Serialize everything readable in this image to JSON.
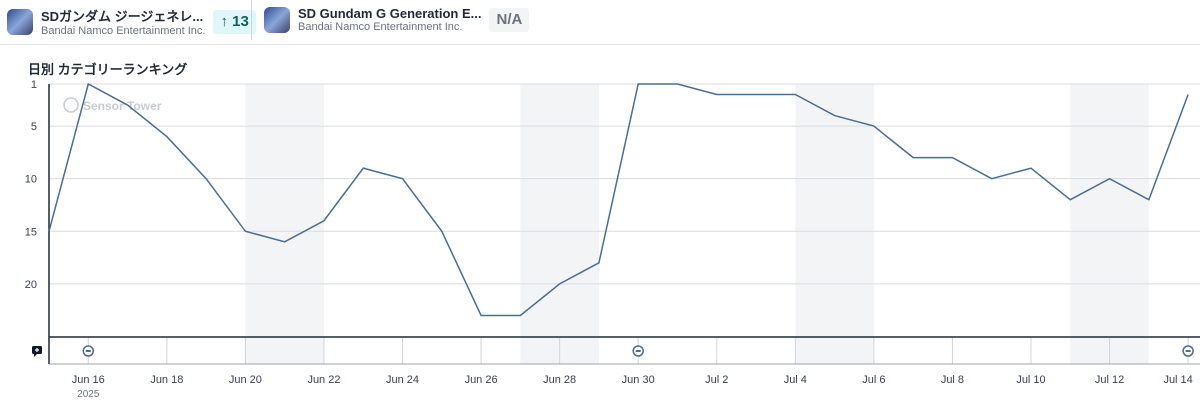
{
  "apps": [
    {
      "name": "SDガンダム ジージェネレ...",
      "publisher": "Bandai Namco Entertainment Inc.",
      "change": "↑ 13",
      "badge_color": "#e0f7f9",
      "text_color": "#0f5f63"
    },
    {
      "name": "SD Gundam G Generation E...",
      "publisher": "Bandai Namco Entertainment Inc.",
      "change": "N/A",
      "badge_color": "#f3f4f6",
      "text_color": "#6b7280"
    }
  ],
  "watermark": "Sensor Tower",
  "chart_data": {
    "type": "line",
    "title": "日別 カテゴリーランキング",
    "x": [
      "Jun 15",
      "Jun 16",
      "Jun 17",
      "Jun 18",
      "Jun 19",
      "Jun 20",
      "Jun 21",
      "Jun 22",
      "Jun 23",
      "Jun 24",
      "Jun 25",
      "Jun 26",
      "Jun 27",
      "Jun 28",
      "Jun 29",
      "Jun 30",
      "Jul 1",
      "Jul 2",
      "Jul 3",
      "Jul 4",
      "Jul 5",
      "Jul 6",
      "Jul 7",
      "Jul 8",
      "Jul 9",
      "Jul 10",
      "Jul 11",
      "Jul 12",
      "Jul 13",
      "Jul 14"
    ],
    "series": [
      {
        "name": "SDガンダム ジージェネレ...",
        "color": "#4a6d94",
        "values": [
          15,
          1,
          3,
          6,
          10,
          15,
          16,
          14,
          9,
          10,
          15,
          23,
          23,
          20,
          18,
          1,
          1,
          2,
          2,
          2,
          4,
          5,
          8,
          8,
          10,
          9,
          12,
          10,
          12,
          2
        ]
      }
    ],
    "y_ticks": [
      "1",
      "5",
      "10",
      "15",
      "20"
    ],
    "ylim": [
      1,
      25
    ],
    "y_inverted": true,
    "x_tick_labels": [
      "Jun 16",
      "Jun 18",
      "Jun 20",
      "Jun 22",
      "Jun 24",
      "Jun 26",
      "Jun 28",
      "Jun 30",
      "Jul 2",
      "Jul 4",
      "Jul 6",
      "Jul 8",
      "Jul 10",
      "Jul 12",
      "Jul 14"
    ],
    "x_tick_indices": [
      1,
      3,
      5,
      7,
      9,
      11,
      13,
      15,
      17,
      19,
      21,
      23,
      25,
      27,
      29
    ],
    "year_label": "2025",
    "shaded_ranges": [
      [
        5,
        7
      ],
      [
        12,
        14
      ],
      [
        19,
        21
      ],
      [
        26,
        28
      ]
    ],
    "annotation_indices": [
      1,
      15,
      29
    ]
  }
}
